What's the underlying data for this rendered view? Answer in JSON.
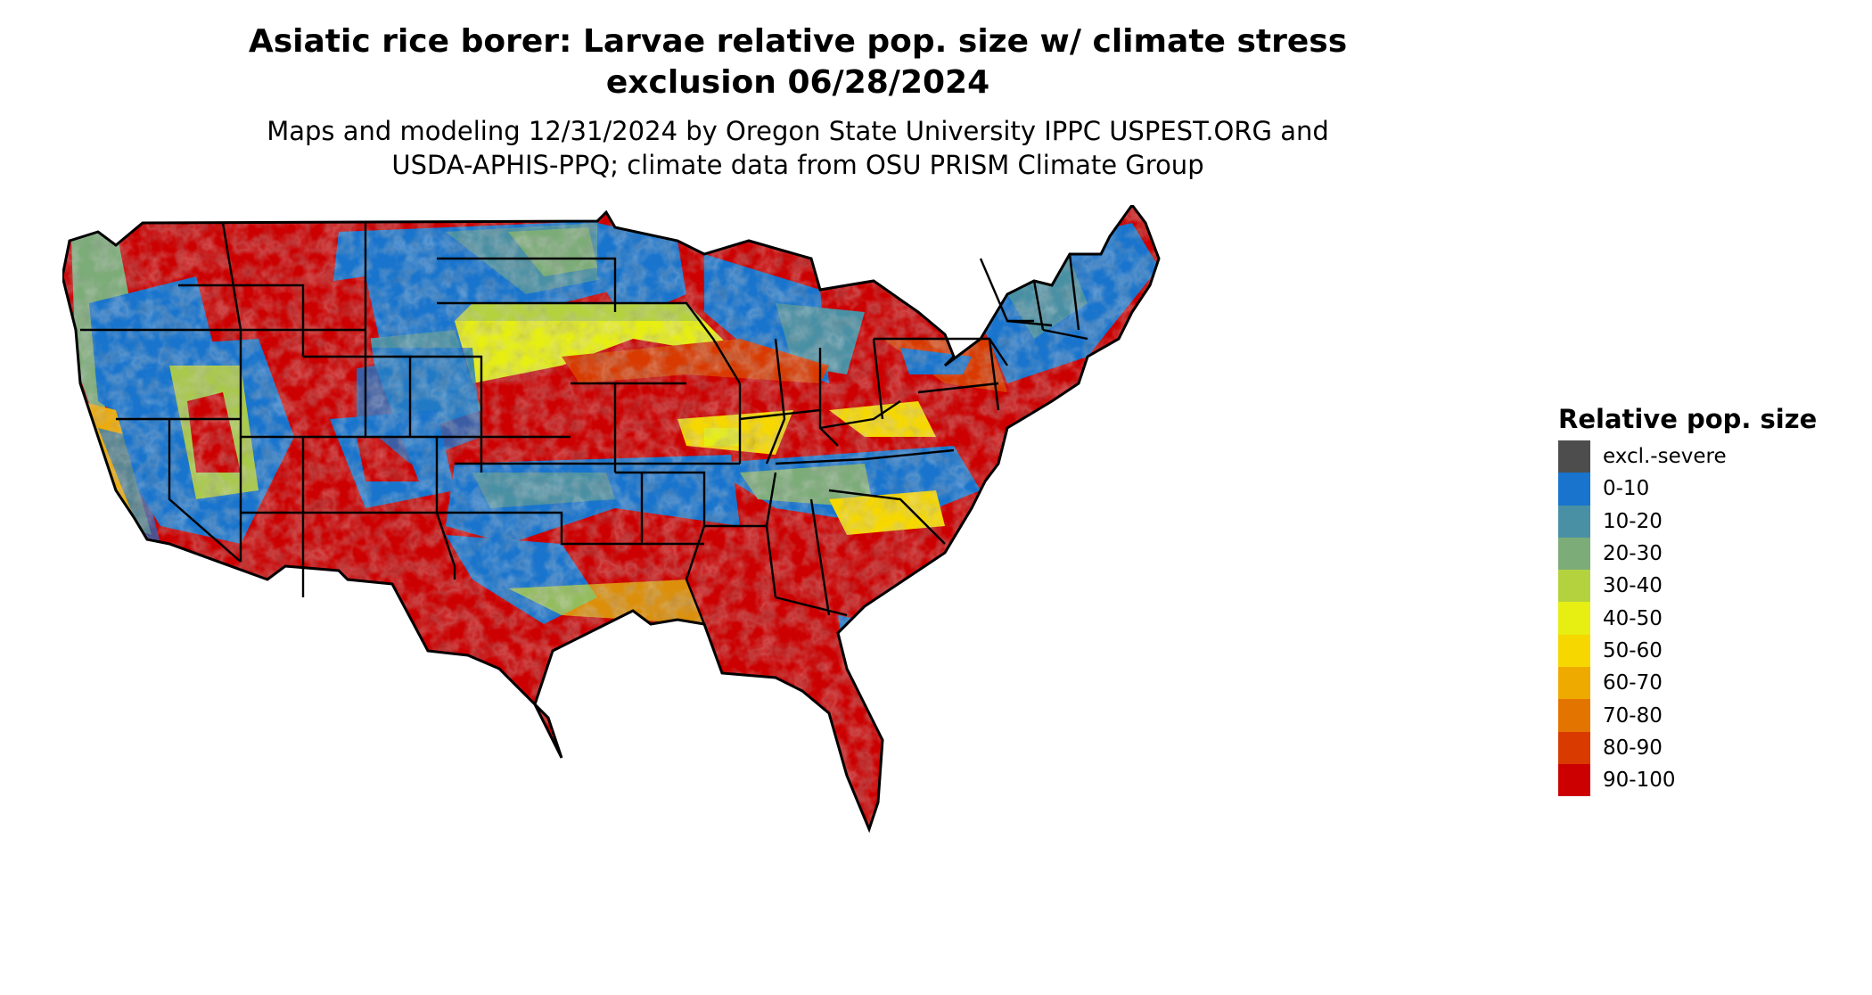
{
  "title": {
    "line1": "Asiatic rice borer: Larvae relative pop. size w/ climate stress",
    "line2": "exclusion 06/28/2024"
  },
  "subtitle": {
    "line1": "Maps and modeling 12/31/2024 by Oregon State University IPPC USPEST.ORG and",
    "line2": "USDA-APHIS-PPQ; climate data from OSU PRISM Climate Group"
  },
  "legend": {
    "title": "Relative pop. size",
    "items": [
      {
        "label": "excl.-severe",
        "color": "#4d4d4d"
      },
      {
        "label": "0-10",
        "color": "#1874cd"
      },
      {
        "label": "10-20",
        "color": "#4a90a4"
      },
      {
        "label": "20-30",
        "color": "#7cac78"
      },
      {
        "label": "30-40",
        "color": "#b4d23e"
      },
      {
        "label": "40-50",
        "color": "#e6ee12"
      },
      {
        "label": "50-60",
        "color": "#f6d800"
      },
      {
        "label": "60-70",
        "color": "#efaa00"
      },
      {
        "label": "70-80",
        "color": "#e47400"
      },
      {
        "label": "80-90",
        "color": "#d83a00"
      },
      {
        "label": "90-100",
        "color": "#cc0000"
      }
    ]
  }
}
